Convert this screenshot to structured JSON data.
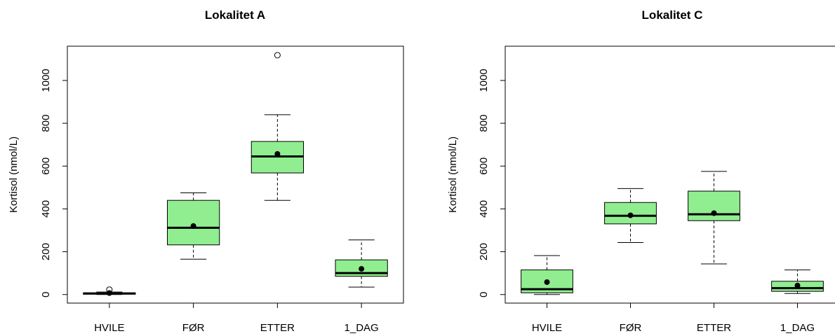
{
  "chart_data": [
    {
      "type": "boxplot",
      "title": "Lokalitet A",
      "ylabel": "Kortisol (nmol/L)",
      "xlabel": "",
      "categories": [
        "HVILE",
        "FØR",
        "ETTER",
        "1_DAG"
      ],
      "ylim": [
        -40,
        1160
      ],
      "yticks": [
        0,
        200,
        400,
        600,
        800,
        1000
      ],
      "box_color": "#90ee90",
      "boxes": [
        {
          "label": "HVILE",
          "whisker_low": 0,
          "q1": 2,
          "median": 5,
          "q3": 8,
          "whisker_high": 12,
          "mean": 7,
          "outliers": [
            23
          ]
        },
        {
          "label": "FØR",
          "whisker_low": 165,
          "q1": 232,
          "median": 312,
          "q3": 440,
          "whisker_high": 475,
          "mean": 320,
          "outliers": []
        },
        {
          "label": "ETTER",
          "whisker_low": 440,
          "q1": 568,
          "median": 645,
          "q3": 715,
          "whisker_high": 840,
          "mean": 657,
          "outliers": [
            1118
          ]
        },
        {
          "label": "1_DAG",
          "whisker_low": 35,
          "q1": 85,
          "median": 100,
          "q3": 162,
          "whisker_high": 255,
          "mean": 120,
          "outliers": []
        }
      ]
    },
    {
      "type": "boxplot",
      "title": "Lokalitet C",
      "ylabel": "Kortisol (nmol/L)",
      "xlabel": "",
      "categories": [
        "HVILE",
        "FØR",
        "ETTER",
        "1_DAG"
      ],
      "ylim": [
        -40,
        1160
      ],
      "yticks": [
        0,
        200,
        400,
        600,
        800,
        1000
      ],
      "box_color": "#90ee90",
      "boxes": [
        {
          "label": "HVILE",
          "whisker_low": 0,
          "q1": 8,
          "median": 25,
          "q3": 115,
          "whisker_high": 182,
          "mean": 58,
          "outliers": []
        },
        {
          "label": "FØR",
          "whisker_low": 243,
          "q1": 330,
          "median": 368,
          "q3": 430,
          "whisker_high": 495,
          "mean": 370,
          "outliers": []
        },
        {
          "label": "ETTER",
          "whisker_low": 143,
          "q1": 345,
          "median": 375,
          "q3": 483,
          "whisker_high": 575,
          "mean": 380,
          "outliers": []
        },
        {
          "label": "1_DAG",
          "whisker_low": 5,
          "q1": 15,
          "median": 30,
          "q3": 62,
          "whisker_high": 115,
          "mean": 42,
          "outliers": []
        }
      ]
    }
  ]
}
